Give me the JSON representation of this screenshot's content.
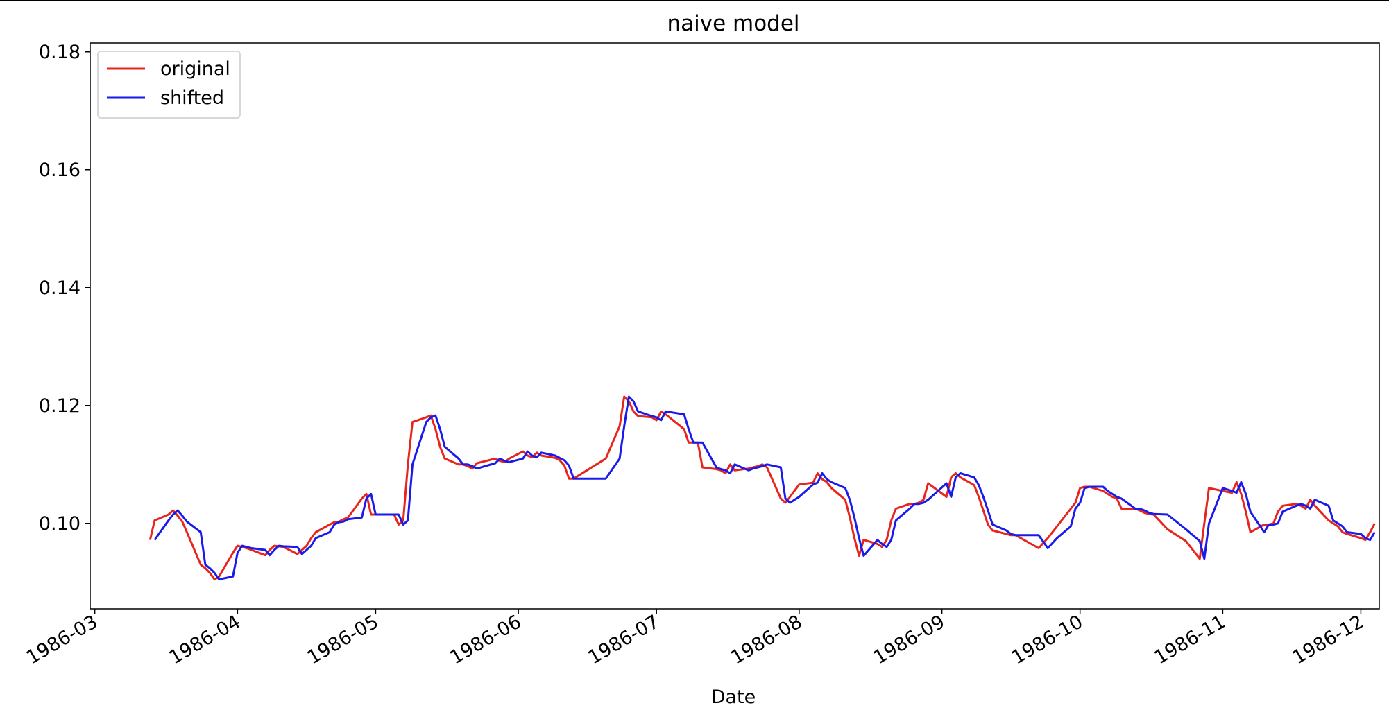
{
  "chart_data": {
    "type": "line",
    "title": "naive model",
    "xlabel": "Date",
    "ylabel": "",
    "xlim": [
      "1986-02-28",
      "1986-12-05"
    ],
    "ylim": [
      0.0855,
      0.1815
    ],
    "x_ticks": [
      "1986-03",
      "1986-04",
      "1986-05",
      "1986-06",
      "1986-07",
      "1986-08",
      "1986-09",
      "1986-10",
      "1986-11",
      "1986-12"
    ],
    "y_ticks": [
      "0.10",
      "0.12",
      "0.14",
      "0.16",
      "0.18"
    ],
    "grid": false,
    "legend_position": "upper-left",
    "series": [
      {
        "name": "original",
        "color": "#e8251c",
        "points": [
          [
            "1986-03-13",
            0.0972
          ],
          [
            "1986-03-14",
            0.1005
          ],
          [
            "1986-03-17",
            0.1015
          ],
          [
            "1986-03-18",
            0.1022
          ],
          [
            "1986-03-19",
            0.1013
          ],
          [
            "1986-03-20",
            0.1003
          ],
          [
            "1986-03-21",
            0.0985
          ],
          [
            "1986-03-24",
            0.093
          ],
          [
            "1986-03-25",
            0.0924
          ],
          [
            "1986-03-26",
            0.0916
          ],
          [
            "1986-03-27",
            0.0905
          ],
          [
            "1986-03-28",
            0.091
          ],
          [
            "1986-03-31",
            0.095
          ],
          [
            "1986-04-01",
            0.0962
          ],
          [
            "1986-04-02",
            0.096
          ],
          [
            "1986-04-03",
            0.0958
          ],
          [
            "1986-04-04",
            0.0955
          ],
          [
            "1986-04-07",
            0.0946
          ],
          [
            "1986-04-08",
            0.0955
          ],
          [
            "1986-04-09",
            0.0962
          ],
          [
            "1986-04-10",
            0.0961
          ],
          [
            "1986-04-11",
            0.096
          ],
          [
            "1986-04-14",
            0.0948
          ],
          [
            "1986-04-15",
            0.0955
          ],
          [
            "1986-04-16",
            0.0962
          ],
          [
            "1986-04-17",
            0.0975
          ],
          [
            "1986-04-18",
            0.0985
          ],
          [
            "1986-04-21",
            0.0998
          ],
          [
            "1986-04-22",
            0.1002
          ],
          [
            "1986-04-23",
            0.1003
          ],
          [
            "1986-04-24",
            0.1007
          ],
          [
            "1986-04-25",
            0.101
          ],
          [
            "1986-04-28",
            0.1042
          ],
          [
            "1986-04-29",
            0.105
          ],
          [
            "1986-04-30",
            0.1015
          ],
          [
            "1986-05-01",
            0.1015
          ],
          [
            "1986-05-02",
            0.1015
          ],
          [
            "1986-05-05",
            0.1015
          ],
          [
            "1986-05-06",
            0.0998
          ],
          [
            "1986-05-07",
            0.1005
          ],
          [
            "1986-05-08",
            0.11
          ],
          [
            "1986-05-09",
            0.1172
          ],
          [
            "1986-05-12",
            0.118
          ],
          [
            "1986-05-13",
            0.1183
          ],
          [
            "1986-05-14",
            0.116
          ],
          [
            "1986-05-15",
            0.113
          ],
          [
            "1986-05-16",
            0.111
          ],
          [
            "1986-05-19",
            0.11
          ],
          [
            "1986-05-20",
            0.11
          ],
          [
            "1986-05-21",
            0.1097
          ],
          [
            "1986-05-22",
            0.1093
          ],
          [
            "1986-05-23",
            0.1102
          ],
          [
            "1986-05-27",
            0.111
          ],
          [
            "1986-05-28",
            0.1106
          ],
          [
            "1986-05-29",
            0.1104
          ],
          [
            "1986-05-30",
            0.111
          ],
          [
            "1986-06-02",
            0.1122
          ],
          [
            "1986-06-03",
            0.1115
          ],
          [
            "1986-06-04",
            0.1112
          ],
          [
            "1986-06-05",
            0.112
          ],
          [
            "1986-06-06",
            0.1115
          ],
          [
            "1986-06-09",
            0.1111
          ],
          [
            "1986-06-10",
            0.1107
          ],
          [
            "1986-06-11",
            0.1098
          ],
          [
            "1986-06-12",
            0.1076
          ],
          [
            "1986-06-13",
            0.1076
          ],
          [
            "1986-06-20",
            0.111
          ],
          [
            "1986-06-23",
            0.1165
          ],
          [
            "1986-06-24",
            0.1215
          ],
          [
            "1986-06-25",
            0.1207
          ],
          [
            "1986-06-26",
            0.119
          ],
          [
            "1986-06-27",
            0.1182
          ],
          [
            "1986-06-30",
            0.118
          ],
          [
            "1986-07-01",
            0.1175
          ],
          [
            "1986-07-02",
            0.119
          ],
          [
            "1986-07-03",
            0.1185
          ],
          [
            "1986-07-07",
            0.116
          ],
          [
            "1986-07-08",
            0.1137
          ],
          [
            "1986-07-09",
            0.1137
          ],
          [
            "1986-07-10",
            0.1137
          ],
          [
            "1986-07-11",
            0.1095
          ],
          [
            "1986-07-14",
            0.1092
          ],
          [
            "1986-07-15",
            0.109
          ],
          [
            "1986-07-16",
            0.1085
          ],
          [
            "1986-07-17",
            0.11
          ],
          [
            "1986-07-18",
            0.109
          ],
          [
            "1986-07-21",
            0.1093
          ],
          [
            "1986-07-22",
            0.1095
          ],
          [
            "1986-07-23",
            0.1097
          ],
          [
            "1986-07-24",
            0.11
          ],
          [
            "1986-07-25",
            0.1095
          ],
          [
            "1986-07-28",
            0.1042
          ],
          [
            "1986-07-29",
            0.1035
          ],
          [
            "1986-07-30",
            0.1045
          ],
          [
            "1986-08-01",
            0.1066
          ],
          [
            "1986-08-04",
            0.1069
          ],
          [
            "1986-08-05",
            0.1085
          ],
          [
            "1986-08-06",
            0.1075
          ],
          [
            "1986-08-07",
            0.107
          ],
          [
            "1986-08-08",
            0.106
          ],
          [
            "1986-08-11",
            0.104
          ],
          [
            "1986-08-12",
            0.101
          ],
          [
            "1986-08-13",
            0.0975
          ],
          [
            "1986-08-14",
            0.0945
          ],
          [
            "1986-08-15",
            0.0972
          ],
          [
            "1986-08-18",
            0.0965
          ],
          [
            "1986-08-19",
            0.096
          ],
          [
            "1986-08-20",
            0.0972
          ],
          [
            "1986-08-21",
            0.1005
          ],
          [
            "1986-08-22",
            0.1025
          ],
          [
            "1986-08-25",
            0.1033
          ],
          [
            "1986-08-26",
            0.1033
          ],
          [
            "1986-08-27",
            0.1035
          ],
          [
            "1986-08-28",
            0.104
          ],
          [
            "1986-08-29",
            0.1068
          ],
          [
            "1986-09-02",
            0.1045
          ],
          [
            "1986-09-03",
            0.1078
          ],
          [
            "1986-09-04",
            0.1085
          ],
          [
            "1986-09-05",
            0.1078
          ],
          [
            "1986-09-08",
            0.1065
          ],
          [
            "1986-09-09",
            0.1045
          ],
          [
            "1986-09-10",
            0.1022
          ],
          [
            "1986-09-11",
            0.0998
          ],
          [
            "1986-09-12",
            0.0988
          ],
          [
            "1986-09-15",
            0.0982
          ],
          [
            "1986-09-16",
            0.098
          ],
          [
            "1986-09-17",
            0.098
          ],
          [
            "1986-09-22",
            0.0958
          ],
          [
            "1986-09-24",
            0.0975
          ],
          [
            "1986-09-26",
            0.0995
          ],
          [
            "1986-09-29",
            0.1025
          ],
          [
            "1986-09-30",
            0.1035
          ],
          [
            "1986-10-01",
            0.106
          ],
          [
            "1986-10-02",
            0.1062
          ],
          [
            "1986-10-03",
            0.1062
          ],
          [
            "1986-10-06",
            0.1055
          ],
          [
            "1986-10-07",
            0.105
          ],
          [
            "1986-10-08",
            0.1045
          ],
          [
            "1986-10-09",
            0.1042
          ],
          [
            "1986-10-10",
            0.1025
          ],
          [
            "1986-10-13",
            0.1025
          ],
          [
            "1986-10-14",
            0.1022
          ],
          [
            "1986-10-15",
            0.1018
          ],
          [
            "1986-10-16",
            0.1016
          ],
          [
            "1986-10-17",
            0.1015
          ],
          [
            "1986-10-20",
            0.099
          ],
          [
            "1986-10-24",
            0.097
          ],
          [
            "1986-10-27",
            0.094
          ],
          [
            "1986-10-28",
            0.1
          ],
          [
            "1986-10-29",
            0.106
          ],
          [
            "1986-11-01",
            0.1055
          ],
          [
            "1986-11-03",
            0.1052
          ],
          [
            "1986-11-04",
            0.107
          ],
          [
            "1986-11-05",
            0.105
          ],
          [
            "1986-11-06",
            0.102
          ],
          [
            "1986-11-07",
            0.0985
          ],
          [
            "1986-11-10",
            0.0998
          ],
          [
            "1986-11-11",
            0.0998
          ],
          [
            "1986-11-12",
            0.1
          ],
          [
            "1986-11-13",
            0.102
          ],
          [
            "1986-11-14",
            0.103
          ],
          [
            "1986-11-17",
            0.1033
          ],
          [
            "1986-11-18",
            0.103
          ],
          [
            "1986-11-19",
            0.1025
          ],
          [
            "1986-11-20",
            0.104
          ],
          [
            "1986-11-21",
            0.103
          ],
          [
            "1986-11-24",
            0.1005
          ],
          [
            "1986-11-25",
            0.1
          ],
          [
            "1986-11-26",
            0.0995
          ],
          [
            "1986-11-27",
            0.0985
          ],
          [
            "1986-11-28",
            0.0982
          ],
          [
            "1986-12-01",
            0.0975
          ],
          [
            "1986-12-02",
            0.0972
          ],
          [
            "1986-12-03",
            0.0985
          ],
          [
            "1986-12-04",
            0.1
          ]
        ]
      },
      {
        "name": "shifted",
        "color": "#1a1aeb",
        "points": []
      }
    ]
  }
}
